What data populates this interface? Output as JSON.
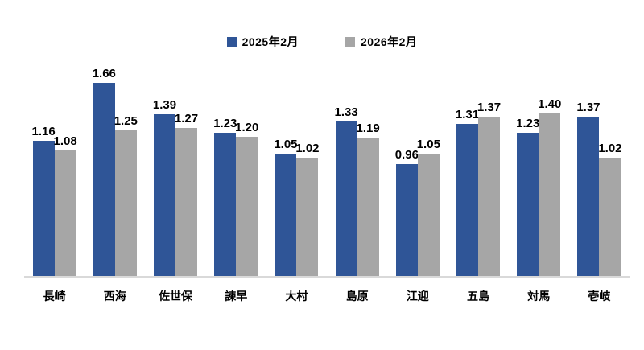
{
  "chart_data": {
    "type": "bar",
    "title": "",
    "categories": [
      "長崎",
      "西海",
      "佐世保",
      "諫早",
      "大村",
      "島原",
      "江迎",
      "五島",
      "対馬",
      "壱岐"
    ],
    "series": [
      {
        "name": "2025年2月",
        "color": "#2F5597",
        "values": [
          1.16,
          1.66,
          1.39,
          1.23,
          1.05,
          1.33,
          0.96,
          1.31,
          1.23,
          1.37
        ]
      },
      {
        "name": "2026年2月",
        "color": "#A6A6A6",
        "values": [
          1.08,
          1.25,
          1.27,
          1.2,
          1.02,
          1.19,
          1.05,
          1.37,
          1.4,
          1.02
        ]
      }
    ],
    "value_labels": true,
    "value_label_format": "0.00",
    "legend_position": "top",
    "ylim": [
      0,
      1.8
    ],
    "grid": false,
    "axis_line_color": "#D9D9D9",
    "background": "#FFFFFF"
  }
}
